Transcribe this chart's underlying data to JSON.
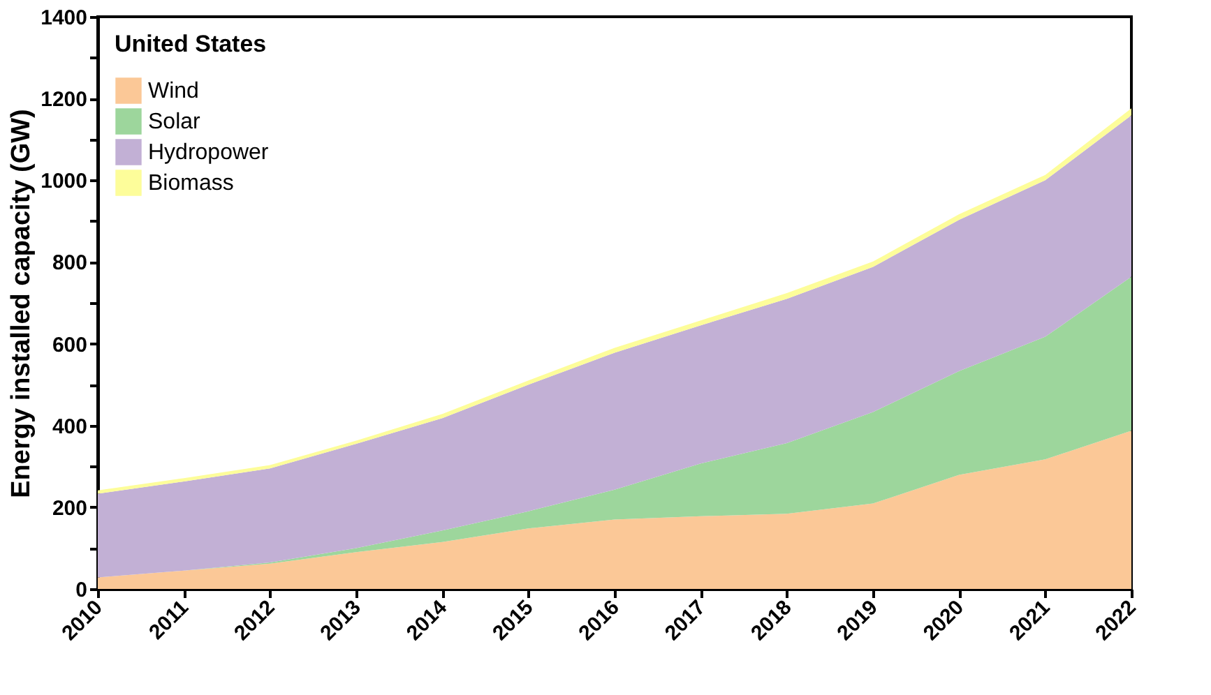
{
  "chart_data": {
    "type": "area",
    "stacked": true,
    "ylabel": "Energy installed capacity (GW)",
    "legend_title": "United States",
    "legend": "top left",
    "grid": false,
    "x": [
      2010,
      2011,
      2012,
      2013,
      2014,
      2015,
      2016,
      2017,
      2018,
      2019,
      2020,
      2021,
      2022
    ],
    "xlim": [
      2010,
      2022
    ],
    "xticks": [
      2010,
      2011,
      2012,
      2013,
      2014,
      2015,
      2016,
      2017,
      2018,
      2019,
      2020,
      2021,
      2022
    ],
    "ylim": [
      0,
      1400
    ],
    "yticks": [
      0,
      {
        "value": 100,
        "label": null
      },
      200,
      {
        "value": 300,
        "label": null
      },
      400,
      {
        "value": 500,
        "label": null
      },
      600,
      {
        "value": 700,
        "label": null
      },
      800,
      {
        "value": 900,
        "label": null
      },
      1000,
      {
        "value": 1100,
        "label": null
      },
      1200,
      {
        "value": 1300,
        "label": null
      },
      1400
    ],
    "series": [
      {
        "name": "Wind",
        "color": "#fbc897",
        "values": [
          28,
          45,
          62,
          90,
          115,
          148,
          170,
          178,
          184,
          209,
          279,
          317,
          387
        ]
      },
      {
        "name": "Solar",
        "color": "#9dd69c",
        "values": [
          0,
          0,
          3,
          10,
          28,
          42,
          73,
          129,
          173,
          224,
          254,
          300,
          377
        ]
      },
      {
        "name": "Hydropower",
        "color": "#c2b0d5",
        "values": [
          205,
          218,
          230,
          255,
          275,
          310,
          335,
          338,
          353,
          355,
          370,
          383,
          395
        ]
      },
      {
        "name": "Biomass",
        "color": "#fdfd9a",
        "values": [
          8,
          8,
          8,
          8,
          10,
          10,
          12,
          12,
          14,
          13,
          14,
          13,
          17
        ]
      }
    ]
  }
}
